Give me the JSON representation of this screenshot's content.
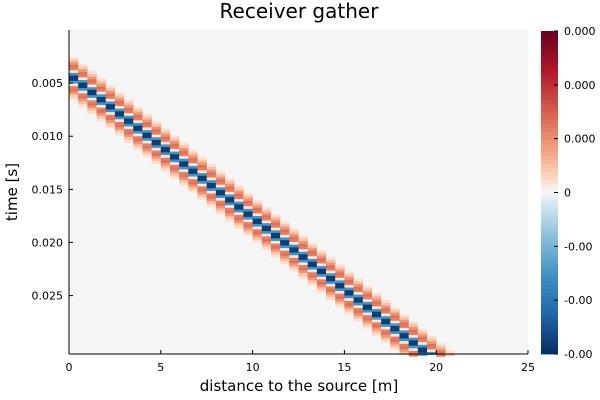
{
  "chart_data": {
    "type": "heatmap",
    "title": "Receiver gather",
    "xlabel": "distance to the source [m]",
    "ylabel": "time [s]",
    "x_range": [
      0,
      25
    ],
    "y_range": [
      0.0,
      0.0305
    ],
    "y_reversed": true,
    "x_ticks": [
      "0",
      "5",
      "10",
      "15",
      "20",
      "25"
    ],
    "x_tick_values": [
      0,
      5,
      10,
      15,
      20,
      25
    ],
    "y_ticks": [
      "0.005",
      "0.010",
      "0.015",
      "0.020",
      "0.025"
    ],
    "y_tick_values": [
      0.005,
      0.01,
      0.015,
      0.02,
      0.025
    ],
    "colorbar_ticks": [
      "0.000",
      "0.000",
      "0.000",
      "0",
      "-0.00",
      "-0.00",
      "-0.00"
    ],
    "colorbar_tick_levels": [
      1.0,
      0.8333,
      0.6667,
      0.5,
      0.3333,
      0.1667,
      0.0
    ],
    "colormap": "RdBu",
    "wavefront": {
      "description_units": "distance [m] vs arrival time [s]",
      "x_start": 0,
      "x_end": 19,
      "t_start": 0.0042,
      "t_end": 0.0298,
      "trace_spacing_m": 0.5,
      "pattern": "central trough (blue) flanked by weaker peaks (red) before and after"
    },
    "grid": false
  }
}
